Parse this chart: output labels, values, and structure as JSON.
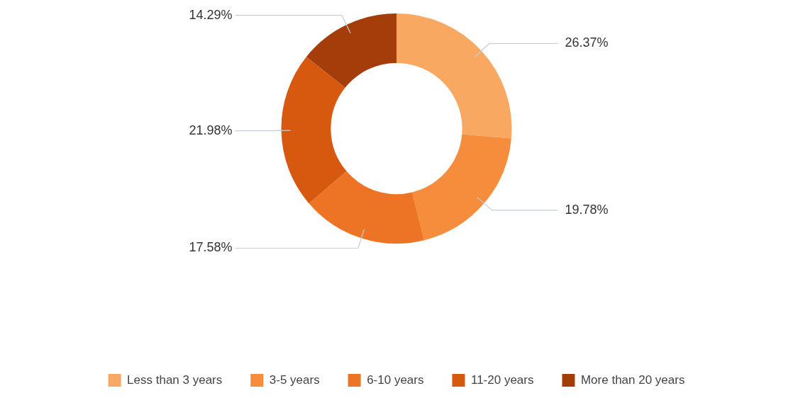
{
  "chart_data": {
    "type": "donut",
    "categories": [
      "Less than 3 years",
      "3-5 years",
      "6-10 years",
      "11-20 years",
      "More than 20 years"
    ],
    "values": [
      26.37,
      19.78,
      17.58,
      21.98,
      14.29
    ],
    "value_labels": [
      "26.37%",
      "19.78%",
      "17.58%",
      "21.98%",
      "14.29%"
    ],
    "colors": [
      "#f9a862",
      "#f68d3c",
      "#ee7425",
      "#d7580f",
      "#a53d0a"
    ],
    "legend": "bottom"
  }
}
